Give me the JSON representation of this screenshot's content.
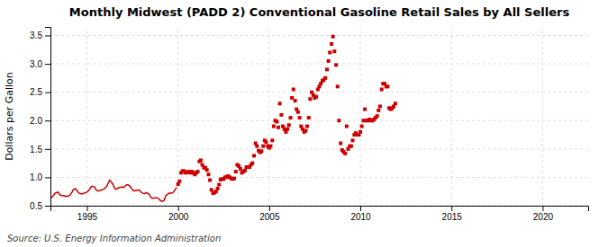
{
  "chart_data": {
    "type": "line",
    "title": "Monthly Midwest (PADD 2) Conventional Gasoline Retail Sales by All Sellers",
    "ylabel": "Dollars per Gallon",
    "annotations": [
      "Source: U.S. Energy Information Administration"
    ],
    "xlim": [
      1993.0,
      2022.5
    ],
    "ylim": [
      0.5,
      3.65
    ],
    "xticks": [
      1995,
      2000,
      2005,
      2010,
      2015,
      2020
    ],
    "yticks": [
      0.5,
      {
        "value": 1.0,
        "label": "1.0"
      },
      1.5,
      {
        "value": 2.0,
        "label": "2.0"
      },
      2.5,
      {
        "value": 3.0,
        "label": "3.0"
      },
      3.5
    ],
    "grid": true,
    "series": [
      {
        "type": "line",
        "color": "#cc0000",
        "x": [
          1993.0,
          1993.08,
          1993.17,
          1993.25,
          1993.33,
          1993.42,
          1993.5,
          1993.58,
          1993.67,
          1993.75,
          1993.83,
          1993.92,
          1994.0,
          1994.08,
          1994.17,
          1994.25,
          1994.33,
          1994.42,
          1994.5,
          1994.58,
          1994.67,
          1994.75,
          1994.83,
          1994.92,
          1995.0,
          1995.08,
          1995.17,
          1995.25,
          1995.33,
          1995.42,
          1995.5,
          1995.58,
          1995.67,
          1995.75,
          1995.83,
          1995.92,
          1996.0,
          1996.08,
          1996.17,
          1996.25,
          1996.33,
          1996.42,
          1996.5,
          1996.58,
          1996.67,
          1996.75,
          1996.83,
          1996.92,
          1997.0,
          1997.08,
          1997.17,
          1997.25,
          1997.33,
          1997.42,
          1997.5,
          1997.58,
          1997.67,
          1997.75,
          1997.83,
          1997.92,
          1998.0,
          1998.08,
          1998.17,
          1998.25,
          1998.33,
          1998.42,
          1998.5,
          1998.58,
          1998.67,
          1998.75,
          1998.83,
          1998.92,
          1999.0,
          1999.08,
          1999.17,
          1999.25,
          1999.33,
          1999.42,
          1999.5,
          1999.58,
          1999.67,
          1999.75,
          1999.83,
          1999.92
        ],
        "values": [
          0.63,
          0.65,
          0.68,
          0.72,
          0.73,
          0.74,
          0.7,
          0.68,
          0.68,
          0.68,
          0.66,
          0.67,
          0.67,
          0.69,
          0.73,
          0.78,
          0.8,
          0.79,
          0.74,
          0.72,
          0.71,
          0.71,
          0.72,
          0.73,
          0.74,
          0.76,
          0.8,
          0.84,
          0.84,
          0.83,
          0.78,
          0.76,
          0.76,
          0.77,
          0.78,
          0.79,
          0.81,
          0.84,
          0.9,
          0.95,
          0.92,
          0.88,
          0.82,
          0.79,
          0.8,
          0.82,
          0.82,
          0.83,
          0.82,
          0.84,
          0.87,
          0.87,
          0.85,
          0.82,
          0.78,
          0.76,
          0.77,
          0.77,
          0.78,
          0.76,
          0.73,
          0.72,
          0.71,
          0.73,
          0.72,
          0.7,
          0.65,
          0.63,
          0.63,
          0.64,
          0.64,
          0.63,
          0.6,
          0.58,
          0.58,
          0.6,
          0.68,
          0.7,
          0.72,
          0.72,
          0.72,
          0.74,
          0.78,
          0.82
        ]
      },
      {
        "type": "scatter",
        "color": "#cc0000",
        "marker": "square",
        "x": [
          2000.0,
          2000.08,
          2000.17,
          2000.25,
          2000.33,
          2000.42,
          2000.5,
          2000.58,
          2000.67,
          2000.75,
          2000.83,
          2000.92,
          2001.0,
          2001.08,
          2001.17,
          2001.25,
          2001.33,
          2001.42,
          2001.5,
          2001.58,
          2001.67,
          2001.75,
          2001.83,
          2001.92,
          2002.0,
          2002.08,
          2002.17,
          2002.25,
          2002.33,
          2002.42,
          2002.5,
          2002.58,
          2002.67,
          2002.75,
          2002.83,
          2002.92,
          2003.0,
          2003.08,
          2003.17,
          2003.25,
          2003.33,
          2003.42,
          2003.5,
          2003.58,
          2003.67,
          2003.75,
          2003.83,
          2003.92,
          2004.0,
          2004.08,
          2004.17,
          2004.25,
          2004.33,
          2004.42,
          2004.5,
          2004.58,
          2004.67,
          2004.75,
          2004.83,
          2004.92,
          2005.0,
          2005.08,
          2005.17,
          2005.25,
          2005.33,
          2005.42,
          2005.5,
          2005.58,
          2005.67,
          2005.75,
          2005.83,
          2005.92,
          2006.0,
          2006.08,
          2006.17,
          2006.25,
          2006.33,
          2006.42,
          2006.5,
          2006.58,
          2006.67,
          2006.75,
          2006.83,
          2006.92,
          2007.0,
          2007.08,
          2007.17,
          2007.25,
          2007.33,
          2007.42,
          2007.5,
          2007.58,
          2007.67,
          2007.75,
          2007.83,
          2007.92,
          2008.0,
          2008.08,
          2008.17,
          2008.25,
          2008.33,
          2008.42,
          2008.5,
          2008.58,
          2008.67,
          2008.75,
          2008.83,
          2008.92,
          2009.0,
          2009.08,
          2009.17,
          2009.25,
          2009.33,
          2009.42,
          2009.5,
          2009.58,
          2009.67,
          2009.75,
          2009.83,
          2009.92,
          2010.0,
          2010.08,
          2010.17,
          2010.25,
          2010.33,
          2010.42,
          2010.5,
          2010.58,
          2010.67,
          2010.75,
          2010.83,
          2010.92,
          2011.0,
          2011.08,
          2011.17,
          2011.25,
          2011.33,
          2011.42,
          2011.5,
          2011.58,
          2011.67,
          2011.75,
          2011.83,
          2011.92
        ],
        "values": [
          0.88,
          0.93,
          1.08,
          1.11,
          1.11,
          1.08,
          1.09,
          1.1,
          1.08,
          1.1,
          1.08,
          1.05,
          1.08,
          1.1,
          1.28,
          1.3,
          1.22,
          1.17,
          1.17,
          1.13,
          1.05,
          0.95,
          0.78,
          0.72,
          0.73,
          0.75,
          0.8,
          0.87,
          0.96,
          0.97,
          0.97,
          1.0,
          1.01,
          1.02,
          1.0,
          0.98,
          0.97,
          0.98,
          1.1,
          1.22,
          1.2,
          1.15,
          1.08,
          1.1,
          1.12,
          1.18,
          1.18,
          1.18,
          1.22,
          1.25,
          1.38,
          1.6,
          1.55,
          1.47,
          1.44,
          1.46,
          1.55,
          1.65,
          1.62,
          1.55,
          1.52,
          1.55,
          1.65,
          1.9,
          2.0,
          1.98,
          1.88,
          2.3,
          2.1,
          1.9,
          1.85,
          1.8,
          1.85,
          1.92,
          2.05,
          2.4,
          2.55,
          2.35,
          2.2,
          2.15,
          2.05,
          1.9,
          1.85,
          1.8,
          1.82,
          1.9,
          2.05,
          2.38,
          2.5,
          2.45,
          2.4,
          2.42,
          2.55,
          2.6,
          2.65,
          2.7,
          2.72,
          2.75,
          2.9,
          3.05,
          3.2,
          3.35,
          3.48,
          3.22,
          2.98,
          2.6,
          2.0,
          1.6,
          1.48,
          1.45,
          1.42,
          1.9,
          1.5,
          1.55,
          1.55,
          1.65,
          1.75,
          1.78,
          1.75,
          1.75,
          1.8,
          1.9,
          2.0,
          2.2,
          2.0,
          2.0,
          2.02,
          2.0,
          2.0,
          2.02,
          2.05,
          2.08,
          2.18,
          2.25,
          2.55,
          2.65,
          2.65,
          2.6,
          2.6,
          2.22,
          2.2,
          2.22,
          2.25,
          2.3
        ]
      }
    ]
  }
}
